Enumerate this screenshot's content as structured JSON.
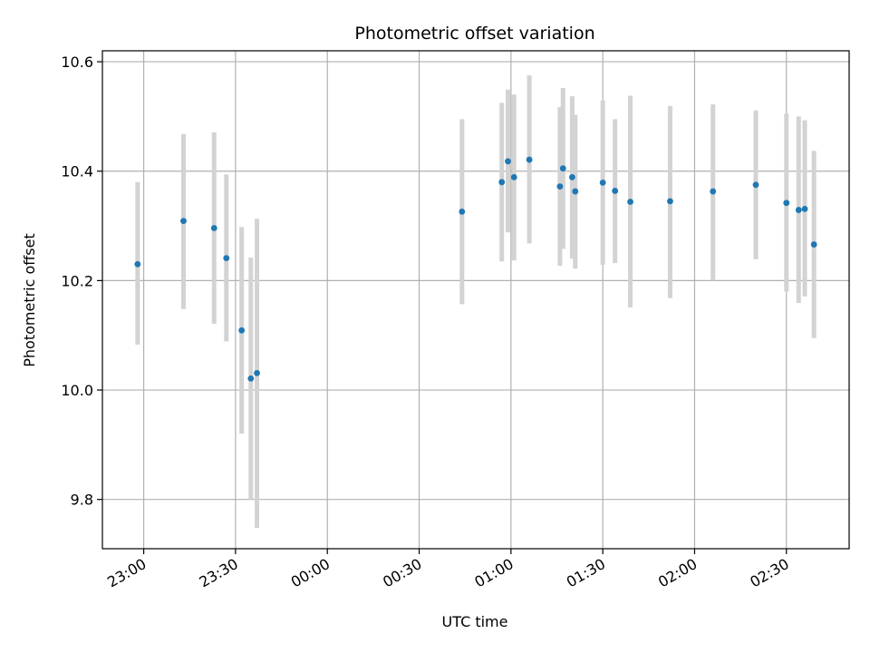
{
  "chart_data": {
    "type": "scatter",
    "title": "Photometric offset variation",
    "xlabel": "UTC time",
    "ylabel": "Photometric offset",
    "grid": true,
    "x_ticks": [
      "23:00",
      "23:30",
      "00:00",
      "00:30",
      "01:00",
      "01:30",
      "02:00",
      "02:30"
    ],
    "y_ticks": [
      "9.8",
      "10.0",
      "10.2",
      "10.4",
      "10.6"
    ],
    "ylim": [
      9.71,
      10.62
    ],
    "xlim_minutes_from_2300": [
      -13.5,
      230.5
    ],
    "series": [
      {
        "points": [
          {
            "x": "22:58",
            "y": 10.23,
            "yerr_low": 10.083,
            "yerr_high": 10.38
          },
          {
            "x": "23:13",
            "y": 10.309,
            "yerr_low": 10.148,
            "yerr_high": 10.468
          },
          {
            "x": "23:23",
            "y": 10.296,
            "yerr_low": 10.121,
            "yerr_high": 10.471
          },
          {
            "x": "23:27",
            "y": 10.241,
            "yerr_low": 10.089,
            "yerr_high": 10.394
          },
          {
            "x": "23:32",
            "y": 10.109,
            "yerr_low": 9.92,
            "yerr_high": 10.298
          },
          {
            "x": "23:35",
            "y": 10.021,
            "yerr_low": 9.8,
            "yerr_high": 10.242
          },
          {
            "x": "23:37",
            "y": 10.031,
            "yerr_low": 9.748,
            "yerr_high": 10.313
          },
          {
            "x": "00:44",
            "y": 10.326,
            "yerr_low": 10.157,
            "yerr_high": 10.495
          },
          {
            "x": "00:57",
            "y": 10.38,
            "yerr_low": 10.235,
            "yerr_high": 10.525
          },
          {
            "x": "00:59",
            "y": 10.418,
            "yerr_low": 10.288,
            "yerr_high": 10.549
          },
          {
            "x": "01:01",
            "y": 10.389,
            "yerr_low": 10.237,
            "yerr_high": 10.54
          },
          {
            "x": "01:06",
            "y": 10.421,
            "yerr_low": 10.268,
            "yerr_high": 10.575
          },
          {
            "x": "01:16",
            "y": 10.372,
            "yerr_low": 10.227,
            "yerr_high": 10.517
          },
          {
            "x": "01:17",
            "y": 10.405,
            "yerr_low": 10.258,
            "yerr_high": 10.552
          },
          {
            "x": "01:20",
            "y": 10.389,
            "yerr_low": 10.24,
            "yerr_high": 10.537
          },
          {
            "x": "01:21",
            "y": 10.363,
            "yerr_low": 10.222,
            "yerr_high": 10.503
          },
          {
            "x": "01:30",
            "y": 10.379,
            "yerr_low": 10.229,
            "yerr_high": 10.529
          },
          {
            "x": "01:34",
            "y": 10.364,
            "yerr_low": 10.232,
            "yerr_high": 10.495
          },
          {
            "x": "01:39",
            "y": 10.344,
            "yerr_low": 10.151,
            "yerr_high": 10.538
          },
          {
            "x": "01:52",
            "y": 10.345,
            "yerr_low": 10.168,
            "yerr_high": 10.519
          },
          {
            "x": "02:06",
            "y": 10.363,
            "yerr_low": 10.2,
            "yerr_high": 10.522
          },
          {
            "x": "02:20",
            "y": 10.375,
            "yerr_low": 10.239,
            "yerr_high": 10.511
          },
          {
            "x": "02:30",
            "y": 10.342,
            "yerr_low": 10.18,
            "yerr_high": 10.505
          },
          {
            "x": "02:34",
            "y": 10.329,
            "yerr_low": 10.159,
            "yerr_high": 10.5
          },
          {
            "x": "02:36",
            "y": 10.331,
            "yerr_low": 10.171,
            "yerr_high": 10.493
          },
          {
            "x": "02:39",
            "y": 10.266,
            "yerr_low": 10.095,
            "yerr_high": 10.437
          }
        ]
      }
    ],
    "colors": {
      "marker": "#1f77b4",
      "errorbar": "#d3d3d3",
      "grid": "#b0b0b0",
      "axes": "#000000"
    }
  }
}
